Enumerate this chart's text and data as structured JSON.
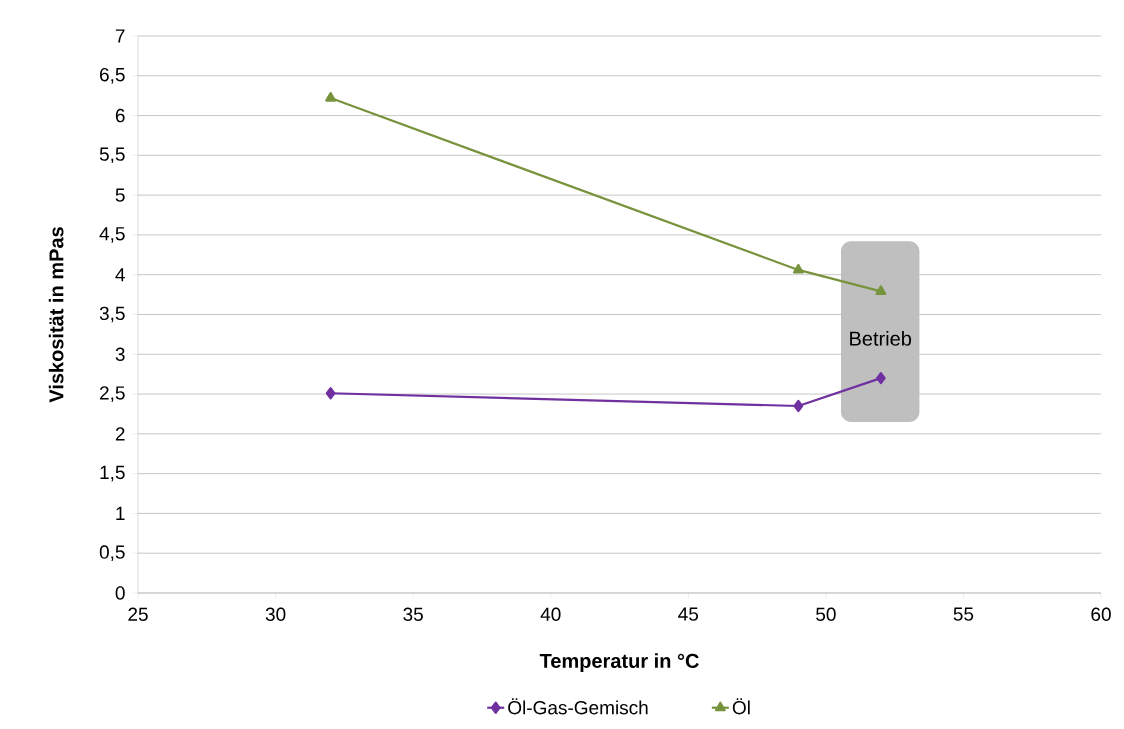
{
  "chart_data": {
    "type": "line",
    "xlabel": "Temperatur in °C",
    "ylabel": "Viskosität in mPas",
    "xlim": [
      25,
      60
    ],
    "xticks": [
      25,
      30,
      35,
      40,
      45,
      50,
      55,
      60
    ],
    "ylim": [
      0,
      7
    ],
    "yticks": [
      0,
      {
        "value": 0.5,
        "label": "0,5"
      },
      1,
      {
        "value": 1.5,
        "label": "1,5"
      },
      2,
      {
        "value": 2.5,
        "label": "2,5"
      },
      3,
      {
        "value": 3.5,
        "label": "3,5"
      },
      4,
      {
        "value": 4.5,
        "label": "4,5"
      },
      5,
      {
        "value": 5.5,
        "label": "5,5"
      },
      6,
      {
        "value": 6.5,
        "label": "6,5"
      },
      7
    ],
    "grid": "y",
    "legend": "bottom",
    "line_style": "solid",
    "series": [
      {
        "name": "Öl-Gas-Gemisch",
        "color": "#7030a0",
        "marker": "diamond",
        "x": [
          32,
          49,
          52
        ],
        "values": [
          2.51,
          2.35,
          2.7
        ]
      },
      {
        "name": "Öl",
        "color": "#77933c",
        "marker": "triangle",
        "x": [
          32,
          49,
          52
        ],
        "values": [
          6.22,
          4.06,
          3.79
        ]
      }
    ],
    "bands": [
      {
        "axis": "x",
        "from": 50.55,
        "to": 53.4,
        "label": "Betrieb",
        "color": "#bfbfbf"
      }
    ]
  }
}
